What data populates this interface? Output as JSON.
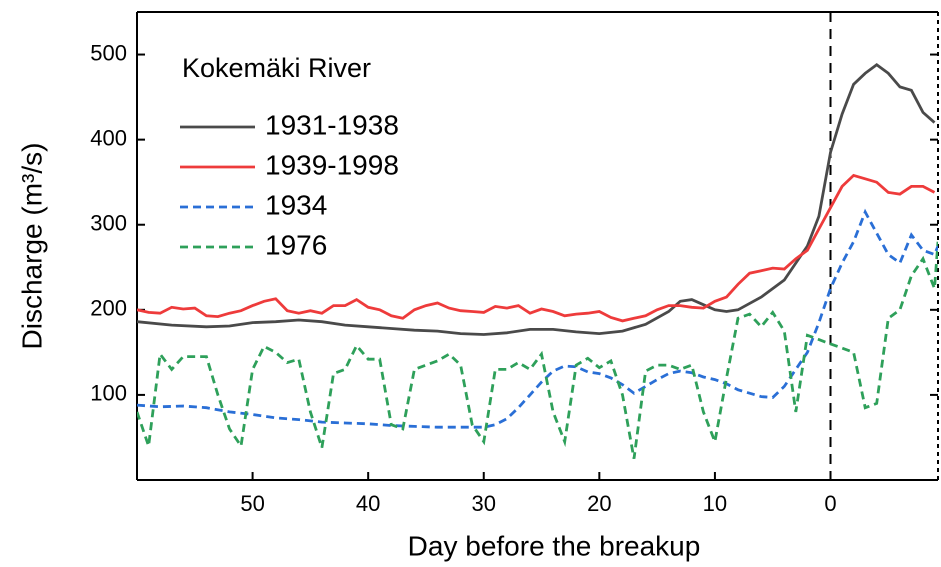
{
  "chart_data": {
    "type": "line",
    "xlabel": "Day before the breakup",
    "ylabel": "Discharge (m³/s)",
    "legend_title": "Kokemäki River",
    "legend": "upper left",
    "xlim": [
      60,
      -9.3
    ],
    "ylim": [
      0,
      550
    ],
    "xticks": [
      50,
      40,
      30,
      20,
      10,
      0
    ],
    "yticks": [
      100,
      200,
      300,
      400,
      500
    ],
    "vline": 0,
    "series": [
      {
        "name": "1931-1938",
        "color": "#4a4a4a",
        "linestyle": "solid",
        "x": [
          60,
          57,
          54,
          52,
          50,
          48,
          46,
          44,
          42,
          40,
          38,
          36,
          34,
          32,
          30,
          28,
          26,
          24,
          22,
          20,
          18,
          16,
          14,
          13,
          12,
          11,
          10,
          9,
          8,
          6,
          4,
          2,
          1,
          0,
          -1,
          -2,
          -3,
          -4,
          -5,
          -6,
          -7,
          -8,
          -9
        ],
        "values": [
          186,
          182,
          180,
          181,
          185,
          186,
          188,
          186,
          182,
          180,
          178,
          176,
          175,
          172,
          171,
          173,
          177,
          177,
          174,
          172,
          175,
          183,
          198,
          210,
          212,
          206,
          200,
          198,
          200,
          215,
          235,
          275,
          310,
          385,
          430,
          465,
          478,
          488,
          478,
          462,
          458,
          432,
          420
        ]
      },
      {
        "name": "1939-1998",
        "color": "#ee3b3b",
        "linestyle": "solid",
        "x": [
          60,
          59,
          58,
          57,
          56,
          55,
          54,
          53,
          52,
          51,
          50,
          49,
          48,
          47,
          46,
          45,
          44,
          43,
          42,
          41,
          40,
          39,
          38,
          37,
          36,
          35,
          34,
          33,
          32,
          31,
          30,
          29,
          28,
          27,
          26,
          25,
          24,
          23,
          22,
          21,
          20,
          19,
          18,
          17,
          16,
          15,
          14,
          13,
          12,
          11,
          10,
          9,
          8,
          7,
          6,
          5,
          4,
          3,
          2,
          1,
          0,
          -1,
          -2,
          -3,
          -4,
          -5,
          -6,
          -7,
          -8,
          -9
        ],
        "values": [
          200,
          197,
          196,
          203,
          201,
          202,
          193,
          192,
          196,
          199,
          205,
          210,
          213,
          199,
          196,
          199,
          196,
          205,
          205,
          212,
          203,
          200,
          193,
          190,
          200,
          205,
          208,
          202,
          199,
          198,
          197,
          204,
          202,
          205,
          196,
          201,
          198,
          193,
          195,
          196,
          198,
          191,
          187,
          190,
          193,
          200,
          205,
          205,
          203,
          202,
          210,
          215,
          230,
          243,
          246,
          249,
          248,
          260,
          270,
          295,
          320,
          345,
          358,
          354,
          350,
          338,
          336,
          345,
          345,
          338
        ]
      },
      {
        "name": "1934",
        "color": "#2a6fd6",
        "linestyle": "dashed",
        "x": [
          60,
          58,
          56,
          54,
          52,
          50,
          48,
          46,
          44,
          42,
          40,
          38,
          36,
          34,
          32,
          30,
          29,
          28,
          27,
          26,
          25,
          24,
          23,
          22,
          21,
          20,
          19,
          18,
          17,
          16,
          15,
          14,
          13,
          12,
          11,
          10,
          9,
          8,
          7,
          6,
          5,
          4,
          3,
          2,
          1,
          0,
          -1,
          -2,
          -3,
          -4,
          -5,
          -6,
          -7,
          -8,
          -9,
          -9.3
        ],
        "values": [
          88,
          86,
          87,
          85,
          80,
          77,
          73,
          71,
          68,
          67,
          66,
          64,
          63,
          62,
          62,
          62,
          65,
          72,
          85,
          100,
          115,
          128,
          134,
          133,
          127,
          125,
          120,
          112,
          102,
          110,
          118,
          125,
          128,
          126,
          121,
          118,
          113,
          106,
          102,
          98,
          97,
          110,
          130,
          150,
          185,
          225,
          255,
          280,
          315,
          290,
          265,
          255,
          288,
          270,
          265,
          275
        ]
      },
      {
        "name": "1976",
        "color": "#2ea05a",
        "linestyle": "dashed",
        "x": [
          60,
          59,
          58,
          57,
          56,
          55,
          54,
          53,
          52,
          51,
          50,
          49,
          48,
          47,
          46,
          45,
          44,
          43,
          42,
          41,
          40,
          39,
          38,
          37,
          36,
          35,
          34,
          33,
          32,
          31,
          30,
          29,
          28,
          27,
          26,
          25,
          24,
          23,
          22,
          21,
          20,
          19,
          18,
          17,
          16,
          15,
          14,
          13,
          12,
          11,
          10,
          9,
          8,
          7,
          6,
          5,
          4,
          3,
          2,
          1,
          0,
          -1,
          -2,
          -3,
          -4,
          -5,
          -6,
          -7,
          -8,
          -9,
          -9.3
        ],
        "values": [
          80,
          40,
          148,
          130,
          145,
          145,
          145,
          100,
          60,
          40,
          130,
          157,
          150,
          138,
          142,
          80,
          38,
          125,
          130,
          158,
          142,
          142,
          65,
          60,
          130,
          135,
          140,
          148,
          135,
          65,
          45,
          130,
          130,
          138,
          130,
          148,
          80,
          45,
          135,
          143,
          132,
          140,
          100,
          25,
          128,
          135,
          135,
          130,
          135,
          80,
          45,
          120,
          190,
          195,
          180,
          197,
          175,
          80,
          170,
          165,
          160,
          155,
          150,
          85,
          90,
          190,
          200,
          240,
          260,
          225,
          280
        ]
      }
    ]
  }
}
